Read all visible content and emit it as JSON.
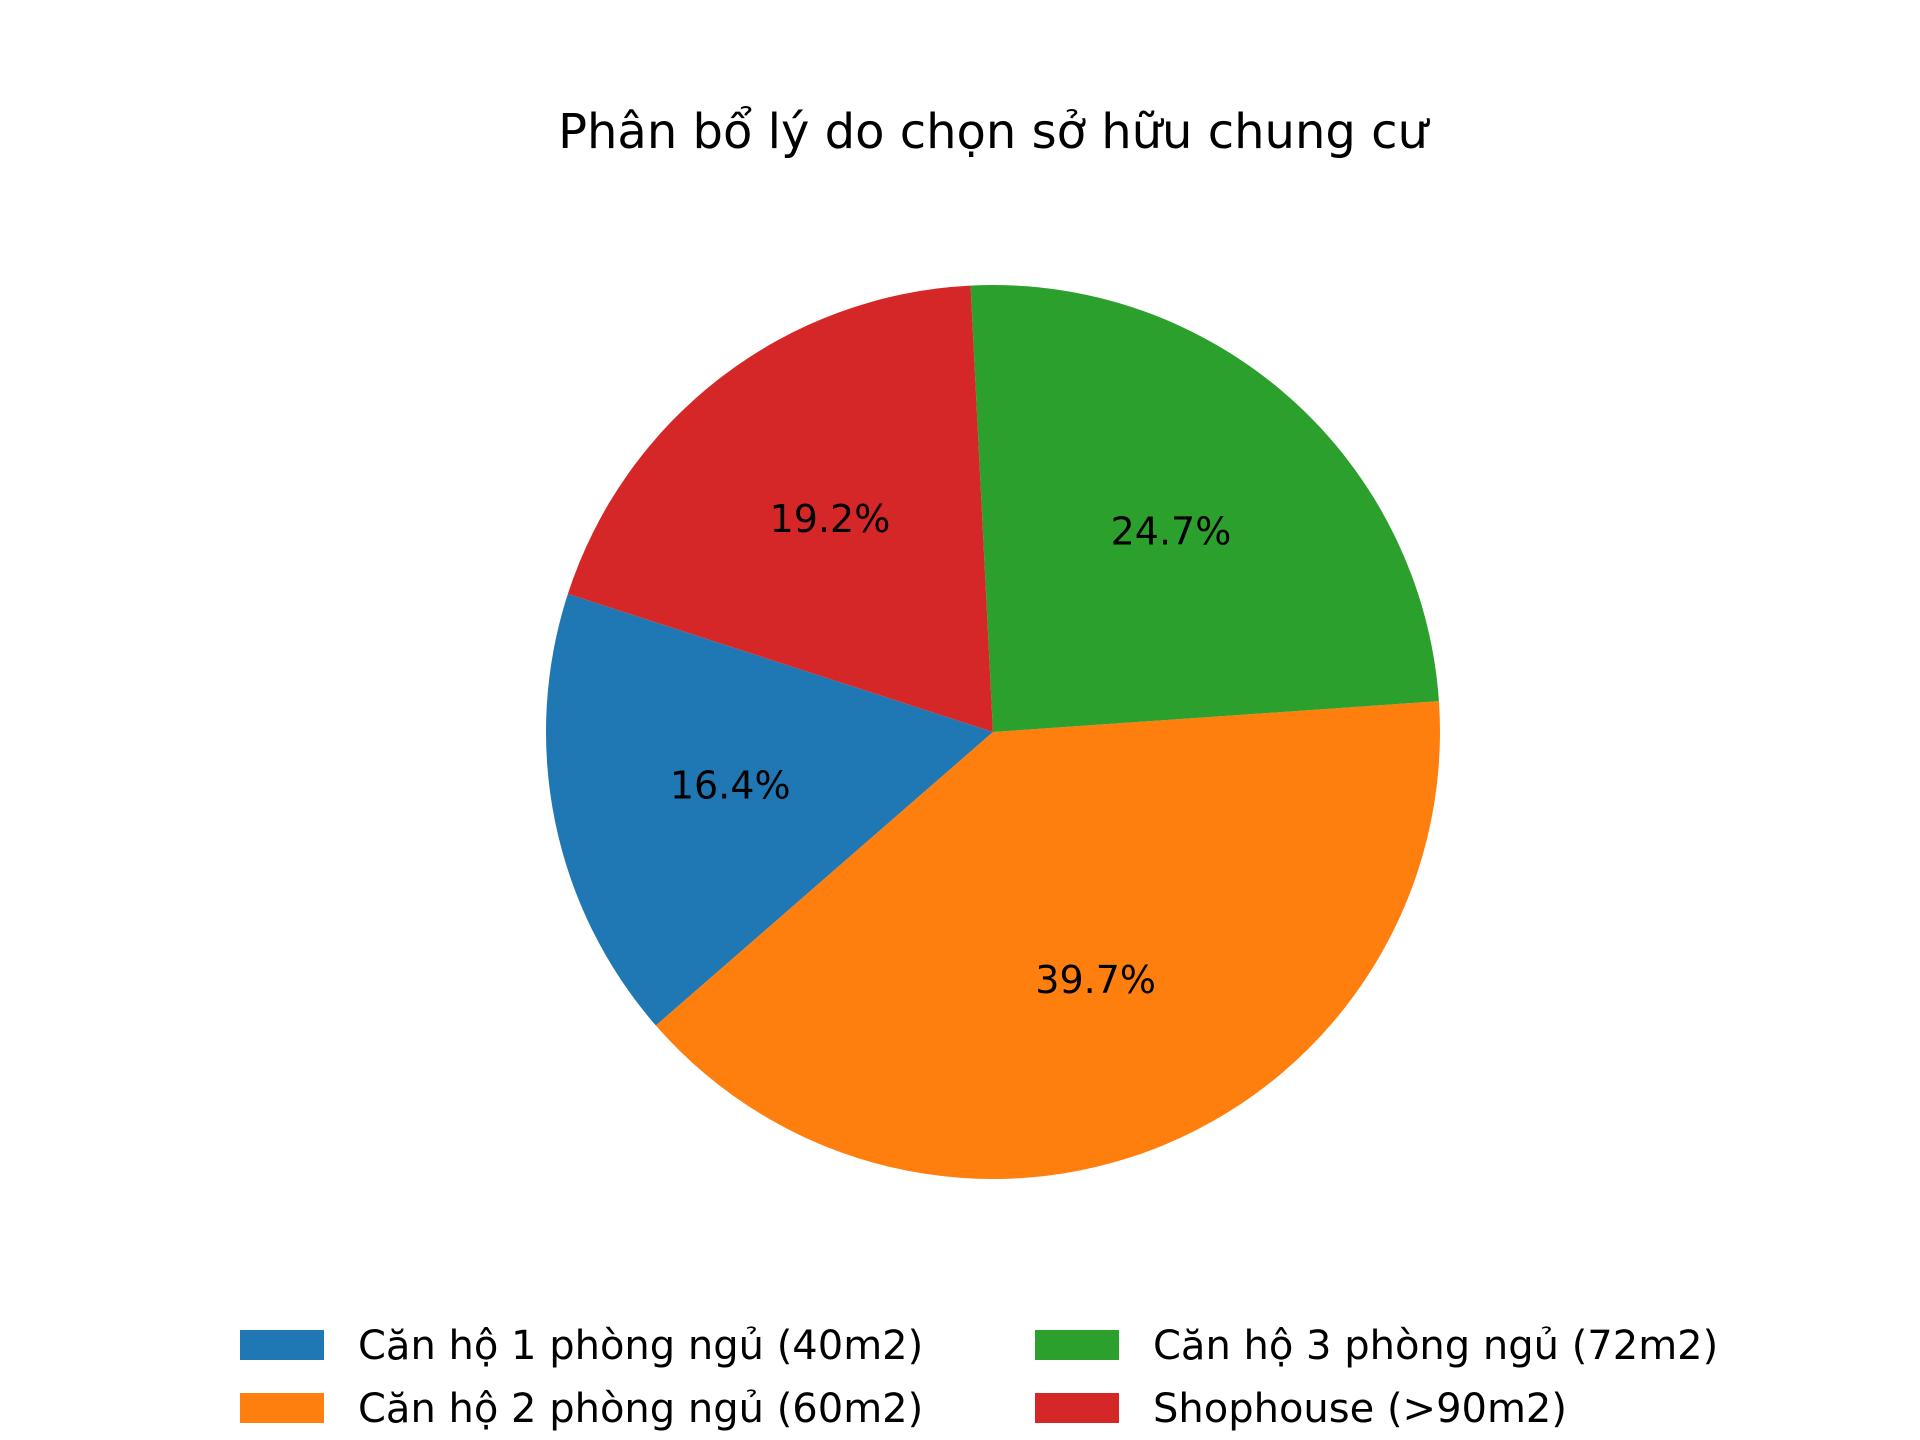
{
  "chart_data": {
    "type": "pie",
    "title": "Phân bổ lý do chọn sở hữu chung cư",
    "categories": [
      "Căn hộ 1 phòng ngủ (40m2)",
      "Căn hộ 2 phòng ngủ (60m2)",
      "Căn hộ 3 phòng ngủ (72m2)",
      "Shophouse (>90m2)"
    ],
    "values": [
      16.4,
      39.7,
      24.7,
      19.2
    ],
    "labels": [
      "16.4%",
      "39.7%",
      "24.7%",
      "19.2%"
    ],
    "colors": [
      "#1f77b4",
      "#ff7f0e",
      "#2ca02c",
      "#d62728"
    ],
    "start_angle_deg": 162,
    "direction": "counterclockwise",
    "legend": {
      "placement": "bottom-center",
      "columns": 2
    }
  }
}
